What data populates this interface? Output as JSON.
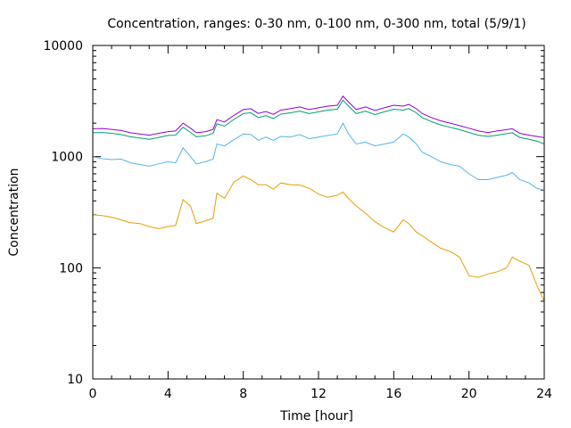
{
  "chart_data": {
    "type": "line",
    "title": "Concentration, ranges: 0-30 nm, 0-100 nm, 0-300 nm, total (5/9/1)",
    "xlabel": "Time [hour]",
    "ylabel": "Concentration",
    "xlim": [
      0,
      24
    ],
    "ylim": [
      10,
      10000
    ],
    "yscale": "log",
    "grid": false,
    "legend": "none",
    "xticks": [
      0,
      4,
      8,
      12,
      16,
      20,
      24
    ],
    "xtick_labels": [
      "0",
      "4",
      "8",
      "12",
      "16",
      "20",
      "24"
    ],
    "yticks": [
      10,
      100,
      1000,
      10000
    ],
    "ytick_labels": [
      "10",
      "100",
      "1000",
      "10000"
    ],
    "series": [
      {
        "color": "#9400d3",
        "points": [
          [
            0,
            1780
          ],
          [
            0.5,
            1790
          ],
          [
            1,
            1760
          ],
          [
            1.5,
            1720
          ],
          [
            2,
            1640
          ],
          [
            2.5,
            1600
          ],
          [
            3,
            1560
          ],
          [
            3.5,
            1620
          ],
          [
            4,
            1680
          ],
          [
            4.4,
            1700
          ],
          [
            4.8,
            2000
          ],
          [
            5.2,
            1800
          ],
          [
            5.5,
            1640
          ],
          [
            6,
            1680
          ],
          [
            6.4,
            1760
          ],
          [
            6.6,
            2150
          ],
          [
            7,
            2050
          ],
          [
            7.5,
            2350
          ],
          [
            8,
            2650
          ],
          [
            8.4,
            2700
          ],
          [
            8.8,
            2450
          ],
          [
            9.2,
            2550
          ],
          [
            9.6,
            2400
          ],
          [
            10,
            2620
          ],
          [
            10.5,
            2700
          ],
          [
            11,
            2800
          ],
          [
            11.5,
            2650
          ],
          [
            12,
            2750
          ],
          [
            12.5,
            2850
          ],
          [
            13,
            2900
          ],
          [
            13.3,
            3500
          ],
          [
            13.6,
            3100
          ],
          [
            14,
            2650
          ],
          [
            14.5,
            2800
          ],
          [
            15,
            2600
          ],
          [
            15.5,
            2750
          ],
          [
            16,
            2900
          ],
          [
            16.5,
            2850
          ],
          [
            16.8,
            2950
          ],
          [
            17.2,
            2700
          ],
          [
            17.5,
            2450
          ],
          [
            18,
            2250
          ],
          [
            18.5,
            2100
          ],
          [
            19,
            2000
          ],
          [
            19.5,
            1900
          ],
          [
            20,
            1800
          ],
          [
            20.5,
            1700
          ],
          [
            21,
            1650
          ],
          [
            21.5,
            1700
          ],
          [
            22,
            1750
          ],
          [
            22.3,
            1780
          ],
          [
            22.7,
            1620
          ],
          [
            23.2,
            1560
          ],
          [
            23.6,
            1520
          ],
          [
            24,
            1480
          ]
        ]
      },
      {
        "color": "#009e73",
        "points": [
          [
            0,
            1640
          ],
          [
            0.5,
            1650
          ],
          [
            1,
            1620
          ],
          [
            1.5,
            1580
          ],
          [
            2,
            1510
          ],
          [
            2.5,
            1470
          ],
          [
            3,
            1430
          ],
          [
            3.5,
            1490
          ],
          [
            4,
            1550
          ],
          [
            4.4,
            1560
          ],
          [
            4.8,
            1840
          ],
          [
            5.2,
            1650
          ],
          [
            5.5,
            1510
          ],
          [
            6,
            1540
          ],
          [
            6.4,
            1620
          ],
          [
            6.6,
            1980
          ],
          [
            7,
            1880
          ],
          [
            7.5,
            2160
          ],
          [
            8,
            2440
          ],
          [
            8.4,
            2480
          ],
          [
            8.8,
            2250
          ],
          [
            9.2,
            2340
          ],
          [
            9.6,
            2200
          ],
          [
            10,
            2410
          ],
          [
            10.5,
            2480
          ],
          [
            11,
            2570
          ],
          [
            11.5,
            2440
          ],
          [
            12,
            2530
          ],
          [
            12.5,
            2620
          ],
          [
            13,
            2670
          ],
          [
            13.3,
            3220
          ],
          [
            13.6,
            2850
          ],
          [
            14,
            2440
          ],
          [
            14.5,
            2570
          ],
          [
            15,
            2390
          ],
          [
            15.5,
            2530
          ],
          [
            16,
            2670
          ],
          [
            16.5,
            2620
          ],
          [
            16.8,
            2710
          ],
          [
            17.2,
            2480
          ],
          [
            17.5,
            2250
          ],
          [
            18,
            2070
          ],
          [
            18.5,
            1930
          ],
          [
            19,
            1840
          ],
          [
            19.5,
            1750
          ],
          [
            20,
            1650
          ],
          [
            20.5,
            1560
          ],
          [
            21,
            1520
          ],
          [
            21.5,
            1560
          ],
          [
            22,
            1610
          ],
          [
            22.3,
            1640
          ],
          [
            22.7,
            1490
          ],
          [
            23.2,
            1430
          ],
          [
            23.6,
            1380
          ],
          [
            24,
            1300
          ]
        ]
      },
      {
        "color": "#56b4e9",
        "points": [
          [
            0,
            1000
          ],
          [
            0.5,
            960
          ],
          [
            1,
            940
          ],
          [
            1.5,
            950
          ],
          [
            2,
            880
          ],
          [
            2.5,
            850
          ],
          [
            3,
            820
          ],
          [
            3.5,
            860
          ],
          [
            4,
            900
          ],
          [
            4.4,
            880
          ],
          [
            4.8,
            1200
          ],
          [
            5.2,
            1000
          ],
          [
            5.5,
            860
          ],
          [
            6,
            900
          ],
          [
            6.4,
            950
          ],
          [
            6.6,
            1300
          ],
          [
            7,
            1250
          ],
          [
            7.5,
            1420
          ],
          [
            8,
            1600
          ],
          [
            8.4,
            1580
          ],
          [
            8.8,
            1400
          ],
          [
            9.2,
            1500
          ],
          [
            9.6,
            1400
          ],
          [
            10,
            1520
          ],
          [
            10.5,
            1500
          ],
          [
            11,
            1580
          ],
          [
            11.5,
            1450
          ],
          [
            12,
            1500
          ],
          [
            12.5,
            1550
          ],
          [
            13,
            1600
          ],
          [
            13.3,
            2000
          ],
          [
            13.6,
            1600
          ],
          [
            14,
            1300
          ],
          [
            14.5,
            1350
          ],
          [
            15,
            1250
          ],
          [
            15.5,
            1300
          ],
          [
            16,
            1350
          ],
          [
            16.5,
            1600
          ],
          [
            16.8,
            1500
          ],
          [
            17.2,
            1300
          ],
          [
            17.5,
            1100
          ],
          [
            18,
            1000
          ],
          [
            18.5,
            900
          ],
          [
            19,
            850
          ],
          [
            19.5,
            820
          ],
          [
            20,
            700
          ],
          [
            20.5,
            620
          ],
          [
            21,
            620
          ],
          [
            21.5,
            650
          ],
          [
            22,
            680
          ],
          [
            22.3,
            720
          ],
          [
            22.7,
            620
          ],
          [
            23.2,
            580
          ],
          [
            23.6,
            520
          ],
          [
            24,
            500
          ]
        ]
      },
      {
        "color": "#e69f00",
        "points": [
          [
            0,
            300
          ],
          [
            0.5,
            295
          ],
          [
            1,
            285
          ],
          [
            1.5,
            270
          ],
          [
            2,
            255
          ],
          [
            2.5,
            250
          ],
          [
            3,
            235
          ],
          [
            3.5,
            225
          ],
          [
            4,
            235
          ],
          [
            4.4,
            240
          ],
          [
            4.8,
            410
          ],
          [
            5.2,
            360
          ],
          [
            5.5,
            250
          ],
          [
            6,
            265
          ],
          [
            6.4,
            280
          ],
          [
            6.6,
            470
          ],
          [
            7,
            420
          ],
          [
            7.5,
            590
          ],
          [
            8,
            670
          ],
          [
            8.4,
            620
          ],
          [
            8.8,
            560
          ],
          [
            9.2,
            560
          ],
          [
            9.6,
            510
          ],
          [
            10,
            580
          ],
          [
            10.5,
            560
          ],
          [
            11,
            555
          ],
          [
            11.5,
            520
          ],
          [
            12,
            460
          ],
          [
            12.5,
            430
          ],
          [
            13,
            450
          ],
          [
            13.3,
            480
          ],
          [
            13.6,
            420
          ],
          [
            14,
            360
          ],
          [
            14.5,
            310
          ],
          [
            15,
            260
          ],
          [
            15.5,
            230
          ],
          [
            16,
            210
          ],
          [
            16.5,
            270
          ],
          [
            16.8,
            250
          ],
          [
            17.2,
            210
          ],
          [
            17.5,
            195
          ],
          [
            18,
            170
          ],
          [
            18.5,
            150
          ],
          [
            19,
            140
          ],
          [
            19.5,
            125
          ],
          [
            20,
            85
          ],
          [
            20.5,
            82
          ],
          [
            21,
            88
          ],
          [
            21.5,
            92
          ],
          [
            22,
            100
          ],
          [
            22.3,
            125
          ],
          [
            22.7,
            115
          ],
          [
            23.2,
            105
          ],
          [
            23.6,
            70
          ],
          [
            24,
            50
          ]
        ]
      }
    ]
  }
}
